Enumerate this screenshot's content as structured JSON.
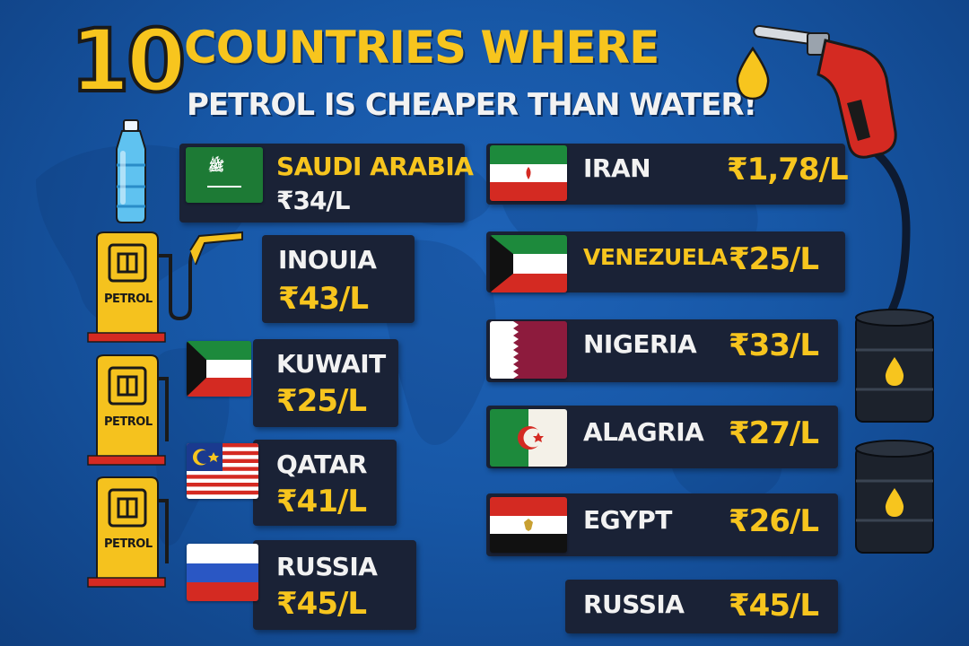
{
  "title": {
    "number": "10",
    "main": "COUNTRIES WHERE",
    "subtitle": "PETROL IS CHEAPER THAN WATER!"
  },
  "pump_label": "PETROL",
  "left_list": [
    {
      "name": "SAUDI ARABIA",
      "price": "₹34/L",
      "flag": "saudi-arabia-flag",
      "flag_text": "ﷺ"
    },
    {
      "name": "INOUIA",
      "price": "₹43/L"
    },
    {
      "name": "KUWAIT",
      "price": "₹25/L",
      "flag": "kuwait-flag"
    },
    {
      "name": "QATAR",
      "price": "₹41/L",
      "flag": "malaysia-flag"
    },
    {
      "name": "RUSSIA",
      "price": "₹45/L",
      "flag": "russia-flag"
    }
  ],
  "right_list": [
    {
      "name": "IRAN",
      "price": "₹1,78/L",
      "flag": "iran-flag"
    },
    {
      "name": "VENEZUELA",
      "price": "₹25/L",
      "flag": "kuwait-flag"
    },
    {
      "name": "NIGERIA",
      "price": "₹33/L",
      "flag": "qatar-flag"
    },
    {
      "name": "ALAGRIA",
      "price": "₹27/L",
      "flag": "algeria-flag"
    },
    {
      "name": "EGYPT",
      "price": "₹26/L",
      "flag": "egypt-flag"
    },
    {
      "name": "RUSSIA",
      "price": "₹45/L"
    }
  ],
  "colors": {
    "background": "#1757a6",
    "accent_yellow": "#f7c51e",
    "card": "#1a2236",
    "pump_red": "#d42a22"
  }
}
